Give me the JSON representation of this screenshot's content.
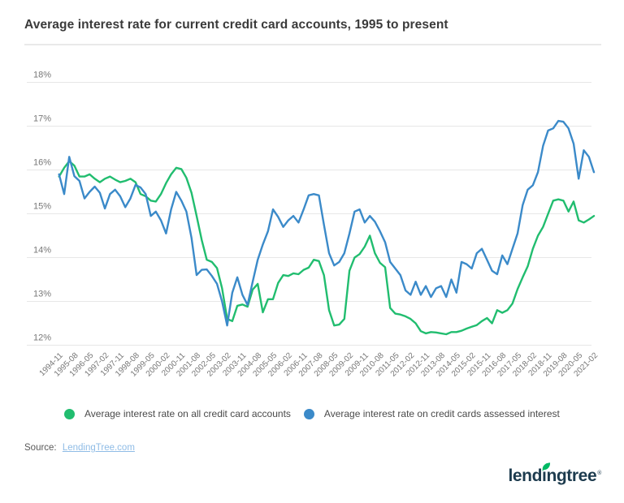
{
  "title": "Average interest rate for current credit card accounts, 1995 to present",
  "legend": [
    {
      "label": "Average interest rate on all credit card accounts",
      "color": "#21bd6f"
    },
    {
      "label": "Average interest rate on credit cards assessed interest",
      "color": "#3b8ac9"
    }
  ],
  "source": {
    "prefix": "Source:",
    "link_text": "LendingTree.com"
  },
  "logo": {
    "wordmark": "lendıngtree",
    "trademark": "®",
    "navy": "#1d3b4e",
    "leaf_green": "#00b964"
  },
  "colors": {
    "background": "#ffffff",
    "grid": "#e7e7e7",
    "axis_text": "#777777",
    "title_text": "#3a3a3a",
    "legend_text": "#4a4a4a",
    "source_text": "#5a5a5a",
    "link": "#8fbce6",
    "divider": "#e9e9e9",
    "series_all_accounts": "#21bd6f",
    "series_assessed_interest": "#3b8ac9"
  },
  "chart_data": {
    "type": "line",
    "title": "Average interest rate for current credit card accounts, 1995 to present",
    "frequency": "quarterly",
    "grid": true,
    "legend_position": "bottom",
    "ylim": [
      12,
      18
    ],
    "y_ticks": [
      "12%",
      "13%",
      "14%",
      "15%",
      "16%",
      "17%",
      "18%"
    ],
    "points_per_tick": 3,
    "x_tick_labels": [
      "1994-11",
      "1995-08",
      "1996-05",
      "1997-02",
      "1997-11",
      "1998-08",
      "1999-05",
      "2000-02",
      "2000-11",
      "2001-08",
      "2002-05",
      "2003-02",
      "2003-11",
      "2004-08",
      "2005-05",
      "2006-02",
      "2006-11",
      "2007-08",
      "2008-05",
      "2009-02",
      "2009-11",
      "2010-08",
      "2011-05",
      "2012-02",
      "2012-11",
      "2013-08",
      "2014-05",
      "2015-02",
      "2015-11",
      "2016-08",
      "2017-05",
      "2018-02",
      "2018-11",
      "2019-08",
      "2020-05",
      "2021-02"
    ],
    "series": [
      {
        "name": "Average interest rate on all credit card accounts",
        "color": "#21bd6f",
        "values": [
          15.85,
          16.05,
          16.2,
          16.1,
          15.85,
          15.85,
          15.9,
          15.8,
          15.72,
          15.8,
          15.85,
          15.78,
          15.72,
          15.75,
          15.8,
          15.72,
          15.45,
          15.4,
          15.3,
          15.28,
          15.45,
          15.7,
          15.9,
          16.05,
          16.02,
          15.82,
          15.48,
          14.95,
          14.4,
          13.95,
          13.9,
          13.76,
          13.3,
          12.6,
          12.55,
          12.9,
          12.93,
          12.88,
          13.27,
          13.4,
          12.75,
          13.05,
          13.05,
          13.42,
          13.6,
          13.58,
          13.64,
          13.62,
          13.72,
          13.77,
          13.95,
          13.92,
          13.6,
          12.8,
          12.45,
          12.47,
          12.6,
          13.7,
          14.0,
          14.08,
          14.25,
          14.5,
          14.1,
          13.88,
          13.78,
          12.85,
          12.72,
          12.7,
          12.66,
          12.6,
          12.5,
          12.32,
          12.27,
          12.3,
          12.29,
          12.27,
          12.25,
          12.3,
          12.3,
          12.33,
          12.38,
          12.42,
          12.46,
          12.55,
          12.62,
          12.5,
          12.8,
          12.74,
          12.8,
          12.95,
          13.28,
          13.55,
          13.8,
          14.2,
          14.5,
          14.7,
          15.0,
          15.3,
          15.33,
          15.3,
          15.05,
          15.28,
          14.85,
          14.8,
          14.87,
          14.95
        ]
      },
      {
        "name": "Average interest rate on credit cards assessed interest",
        "color": "#3b8ac9",
        "values": [
          15.9,
          15.45,
          16.3,
          15.86,
          15.75,
          15.35,
          15.5,
          15.62,
          15.48,
          15.12,
          15.45,
          15.55,
          15.4,
          15.15,
          15.35,
          15.66,
          15.6,
          15.45,
          14.95,
          15.05,
          14.85,
          14.55,
          15.1,
          15.5,
          15.3,
          15.05,
          14.45,
          13.6,
          13.72,
          13.73,
          13.58,
          13.4,
          13.0,
          12.45,
          13.2,
          13.55,
          13.15,
          12.92,
          13.45,
          13.95,
          14.3,
          14.6,
          15.1,
          14.93,
          14.7,
          14.85,
          14.95,
          14.8,
          15.1,
          15.42,
          15.45,
          15.42,
          14.75,
          14.1,
          13.82,
          13.9,
          14.1,
          14.55,
          15.05,
          15.1,
          14.8,
          14.95,
          14.82,
          14.6,
          14.35,
          13.9,
          13.75,
          13.6,
          13.25,
          13.15,
          13.45,
          13.15,
          13.35,
          13.1,
          13.3,
          13.35,
          13.1,
          13.5,
          13.2,
          13.9,
          13.85,
          13.75,
          14.1,
          14.2,
          13.95,
          13.7,
          13.62,
          14.05,
          13.85,
          14.2,
          14.55,
          15.2,
          15.55,
          15.65,
          15.95,
          16.55,
          16.9,
          16.95,
          17.12,
          17.1,
          16.95,
          16.6,
          15.8,
          16.45,
          16.3,
          15.95
        ]
      }
    ]
  }
}
